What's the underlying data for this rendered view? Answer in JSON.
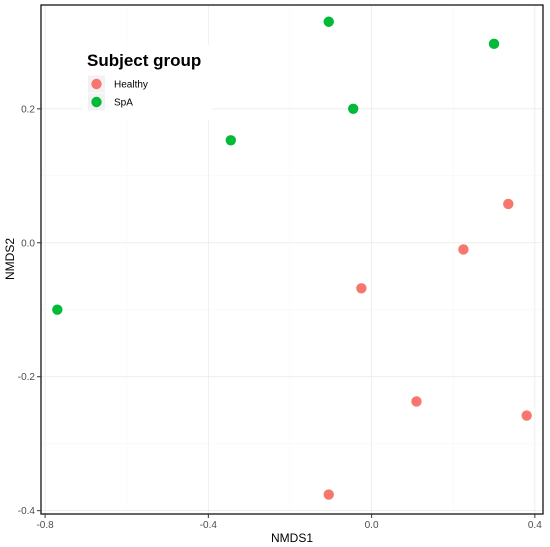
{
  "chart_data": {
    "type": "scatter",
    "xlabel": "NMDS1",
    "ylabel": "NMDS2",
    "xlim": [
      -0.81,
      0.42
    ],
    "ylim": [
      -0.405,
      0.355
    ],
    "x_ticks": [
      -0.8,
      -0.4,
      0.0,
      0.4
    ],
    "x_tick_labels": [
      "-0.8",
      "-0.4",
      "0.0",
      "0.4"
    ],
    "y_ticks": [
      -0.4,
      -0.2,
      0.0,
      0.2
    ],
    "y_tick_labels": [
      "-0.4",
      "-0.2",
      "0.0",
      "0.2"
    ],
    "grid": true,
    "legend": {
      "title": "Subject group",
      "placement": "top-left"
    },
    "series": [
      {
        "name": "Healthy",
        "color": "#F8766D",
        "points": [
          {
            "x": 0.335,
            "y": 0.058
          },
          {
            "x": 0.225,
            "y": -0.01
          },
          {
            "x": -0.025,
            "y": -0.068
          },
          {
            "x": 0.11,
            "y": -0.237
          },
          {
            "x": 0.38,
            "y": -0.258
          },
          {
            "x": -0.105,
            "y": -0.376
          }
        ]
      },
      {
        "name": "SpA",
        "color": "#00BA38",
        "points": [
          {
            "x": -0.105,
            "y": 0.33
          },
          {
            "x": 0.3,
            "y": 0.297
          },
          {
            "x": -0.045,
            "y": 0.2
          },
          {
            "x": -0.345,
            "y": 0.153
          },
          {
            "x": -0.77,
            "y": -0.1
          }
        ]
      }
    ]
  }
}
